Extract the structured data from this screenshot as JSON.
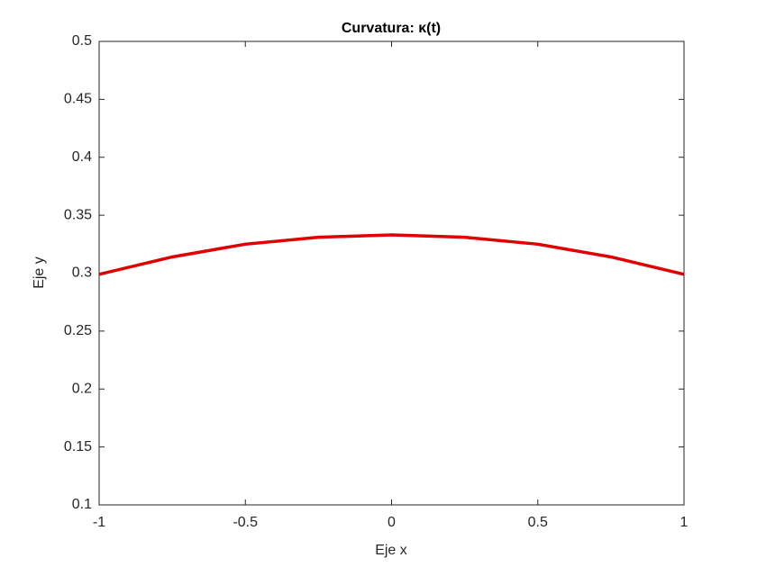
{
  "chart_data": {
    "type": "line",
    "title": "Curvatura: κ(t)",
    "x_label": "Eje x",
    "y_label": "Eje y",
    "x": [
      -1,
      -0.75,
      -0.5,
      -0.25,
      0,
      0.25,
      0.5,
      0.75,
      1
    ],
    "series": [
      {
        "color": "#e00000",
        "values": [
          0.299,
          0.314,
          0.325,
          0.331,
          0.333,
          0.331,
          0.325,
          0.314,
          0.299
        ]
      }
    ],
    "xlim": [
      -1,
      1
    ],
    "xticks": [
      -1,
      -0.5,
      0,
      0.5,
      1
    ],
    "ylim": [
      0.1,
      0.5
    ],
    "yticks": [
      0.1,
      0.15,
      0.2,
      0.25,
      0.3,
      0.35,
      0.4,
      0.45,
      0.5
    ],
    "grid": false
  }
}
